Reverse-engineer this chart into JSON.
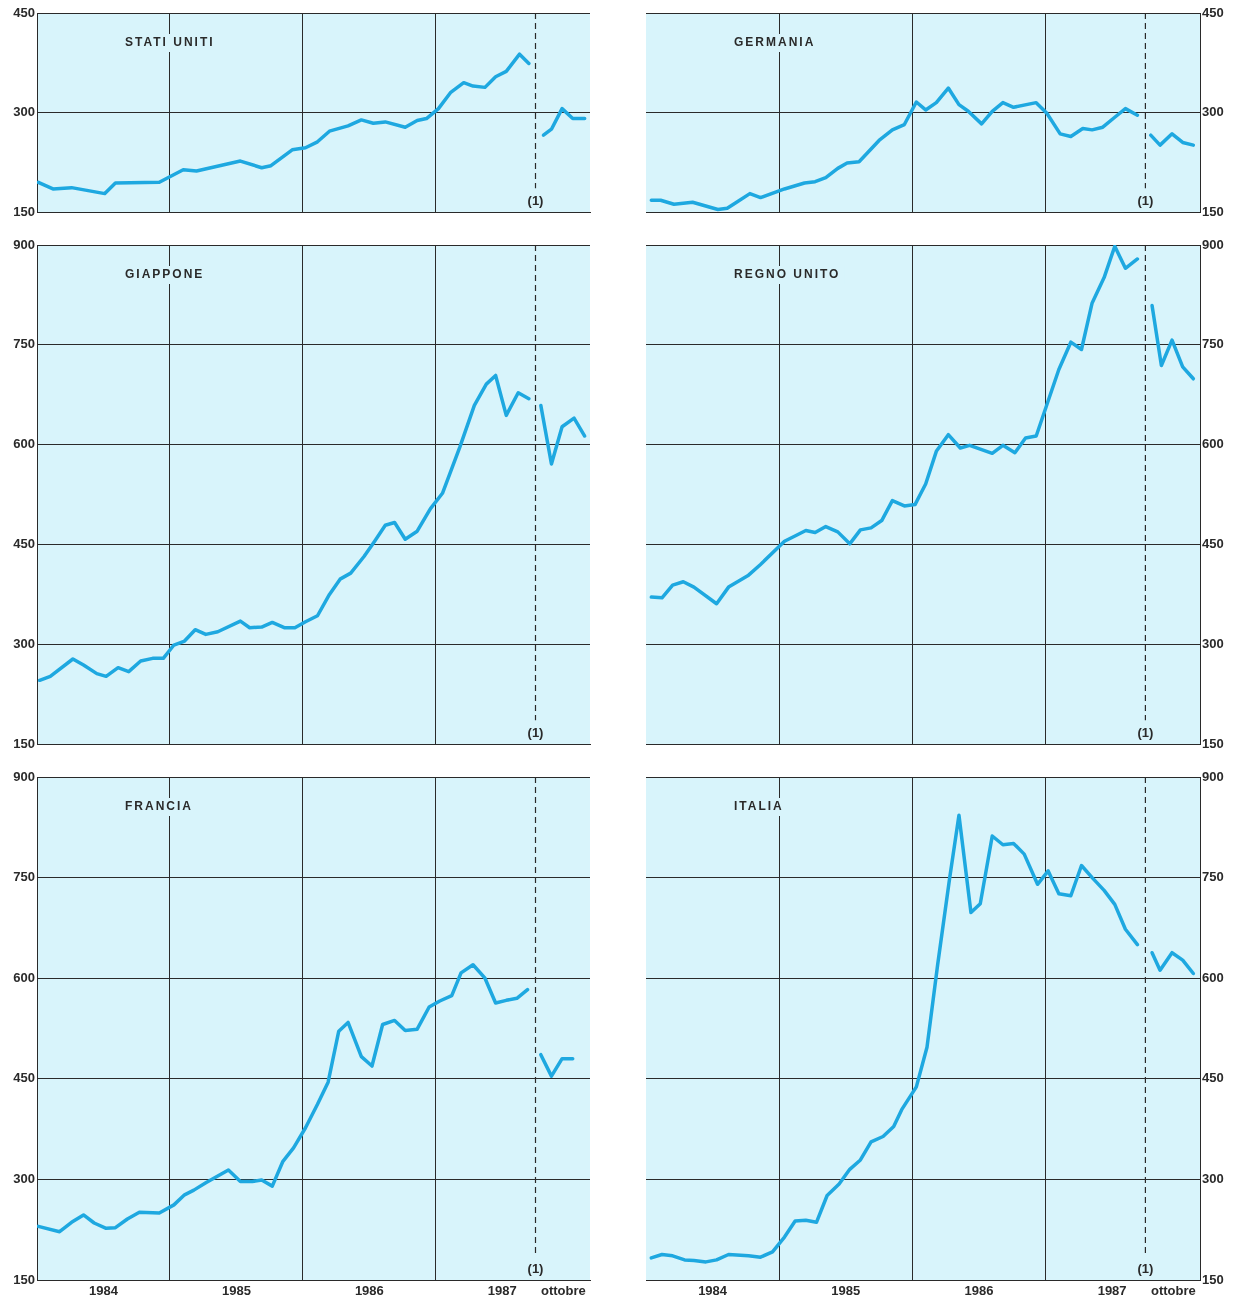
{
  "chart_data": [
    {
      "type": "line",
      "title": "STATI UNITI",
      "annotations": [
        "(1)"
      ],
      "xlim": [
        1984,
        1988.16
      ],
      "xticks": [
        {
          "value": 1985,
          "label": null
        },
        {
          "value": 1986,
          "label": null
        },
        {
          "value": 1987,
          "label": null
        }
      ],
      "ylim": [
        150,
        450
      ],
      "yticks": [
        150,
        300,
        450
      ],
      "grid": true,
      "tick_labels": "y",
      "ref_lines": [
        {
          "axis": "x",
          "value": 1987.75,
          "line_style": "dashed"
        }
      ],
      "series": [
        {
          "color": "#1ea8e0",
          "x": [
            1984.01,
            1984.12,
            1984.26,
            1984.51,
            1984.59,
            1984.92,
            1985.1,
            1985.2,
            1985.53,
            1985.69,
            1985.76,
            1985.92,
            1986.02,
            1986.11,
            1986.2,
            1986.34,
            1986.44,
            1986.53,
            1986.62,
            1986.77,
            1986.86,
            1986.93,
            1987.02,
            1987.11,
            1987.21,
            1987.28,
            1987.37,
            1987.45,
            1987.53,
            1987.63,
            1987.7
          ],
          "values": [
            195,
            185,
            187,
            178,
            194,
            195,
            214,
            212,
            227,
            217,
            220,
            244,
            247,
            256,
            272,
            280,
            289,
            284,
            286,
            278,
            288,
            291,
            306,
            330,
            345,
            340,
            338,
            354,
            362,
            388,
            374
          ]
        },
        {
          "color": "#1ea8e0",
          "x": [
            1987.81,
            1987.87,
            1987.95,
            1988.03,
            1988.12
          ],
          "values": [
            266,
            275,
            306,
            291,
            291
          ]
        }
      ]
    },
    {
      "type": "line",
      "title": "GERMANIA",
      "annotations": [
        "(1)"
      ],
      "xlim": [
        1984,
        1988.16
      ],
      "xticks": [
        {
          "value": 1985,
          "label": null
        },
        {
          "value": 1986,
          "label": null
        },
        {
          "value": 1987,
          "label": null
        }
      ],
      "ylim": [
        150,
        450
      ],
      "yticks": [
        150,
        300,
        450
      ],
      "grid": true,
      "tick_labels": "y",
      "ref_lines": [
        {
          "axis": "x",
          "value": 1987.75,
          "line_style": "dashed"
        }
      ],
      "series": [
        {
          "color": "#1ea8e0",
          "x": [
            1984.04,
            1984.11,
            1984.21,
            1984.35,
            1984.54,
            1984.61,
            1984.68,
            1984.78,
            1984.86,
            1985.04,
            1985.19,
            1985.27,
            1985.35,
            1985.44,
            1985.51,
            1985.6,
            1985.75,
            1985.85,
            1985.94,
            1986.03,
            1986.1,
            1986.18,
            1986.27,
            1986.35,
            1986.42,
            1986.52,
            1986.6,
            1986.68,
            1986.76,
            1986.93,
            1987.01,
            1987.11,
            1987.19,
            1987.28,
            1987.35,
            1987.43,
            1987.52,
            1987.6,
            1987.69
          ],
          "values": [
            168,
            168,
            162,
            165,
            154,
            156,
            165,
            178,
            172,
            185,
            194,
            196,
            202,
            216,
            224,
            226,
            258,
            274,
            282,
            316,
            304,
            315,
            337,
            312,
            302,
            283,
            302,
            315,
            308,
            315,
            299,
            268,
            264,
            276,
            274,
            278,
            293,
            306,
            296
          ]
        },
        {
          "color": "#1ea8e0",
          "x": [
            1987.79,
            1987.86,
            1987.95,
            1988.03,
            1988.11
          ],
          "values": [
            266,
            251,
            268,
            255,
            251
          ]
        }
      ]
    },
    {
      "type": "line",
      "title": "GIAPPONE",
      "annotations": [
        "(1)"
      ],
      "xlim": [
        1984,
        1988.16
      ],
      "xticks": [
        {
          "value": 1985,
          "label": null
        },
        {
          "value": 1986,
          "label": null
        },
        {
          "value": 1987,
          "label": null
        }
      ],
      "ylim": [
        150,
        900
      ],
      "yticks": [
        150,
        300,
        450,
        600,
        750,
        900
      ],
      "grid": true,
      "tick_labels": "y",
      "ref_lines": [
        {
          "axis": "x",
          "value": 1987.75,
          "line_style": "dashed"
        }
      ],
      "series": [
        {
          "color": "#1ea8e0",
          "x": [
            1984.02,
            1984.1,
            1984.27,
            1984.35,
            1984.45,
            1984.52,
            1984.61,
            1984.69,
            1984.78,
            1984.87,
            1984.95,
            1985.03,
            1985.11,
            1985.19,
            1985.27,
            1985.36,
            1985.53,
            1985.6,
            1985.69,
            1985.77,
            1985.86,
            1985.94,
            1986.02,
            1986.11,
            1986.2,
            1986.28,
            1986.36,
            1986.46,
            1986.54,
            1986.62,
            1986.69,
            1986.77,
            1986.86,
            1986.96,
            1987.05,
            1987.18,
            1987.29,
            1987.38,
            1987.45,
            1987.53,
            1987.62,
            1987.7
          ],
          "values": [
            246,
            252,
            278,
            269,
            256,
            252,
            265,
            259,
            275,
            279,
            279,
            299,
            305,
            322,
            315,
            319,
            335,
            325,
            326,
            333,
            325,
            325,
            334,
            343,
            375,
            398,
            407,
            432,
            455,
            479,
            483,
            458,
            470,
            504,
            527,
            596,
            659,
            691,
            704,
            644,
            678,
            669
          ]
        },
        {
          "color": "#1ea8e0",
          "x": [
            1987.79,
            1987.87,
            1987.95,
            1988.04,
            1988.12
          ],
          "values": [
            659,
            571,
            627,
            640,
            613
          ]
        }
      ]
    },
    {
      "type": "line",
      "title": "REGNO UNITO",
      "annotations": [
        "(1)"
      ],
      "xlim": [
        1984,
        1988.16
      ],
      "xticks": [
        {
          "value": 1985,
          "label": null
        },
        {
          "value": 1986,
          "label": null
        },
        {
          "value": 1987,
          "label": null
        }
      ],
      "ylim": [
        150,
        900
      ],
      "yticks": [
        150,
        300,
        450,
        600,
        750,
        900
      ],
      "grid": true,
      "tick_labels": "y",
      "ref_lines": [
        {
          "axis": "x",
          "value": 1987.75,
          "line_style": "dashed"
        }
      ],
      "series": [
        {
          "color": "#1ea8e0",
          "x": [
            1984.04,
            1984.12,
            1984.2,
            1984.28,
            1984.36,
            1984.53,
            1984.62,
            1984.77,
            1984.86,
            1985.04,
            1985.13,
            1985.2,
            1985.27,
            1985.35,
            1985.44,
            1985.53,
            1985.61,
            1985.69,
            1985.77,
            1985.85,
            1985.94,
            1986.02,
            1986.1,
            1986.18,
            1986.27,
            1986.36,
            1986.43,
            1986.6,
            1986.68,
            1986.77,
            1986.85,
            1986.93,
            1987.01,
            1987.1,
            1987.19,
            1987.27,
            1987.35,
            1987.44,
            1987.52,
            1987.6,
            1987.69
          ],
          "values": [
            371,
            370,
            389,
            394,
            386,
            361,
            386,
            404,
            420,
            455,
            464,
            471,
            468,
            477,
            469,
            451,
            472,
            475,
            486,
            516,
            508,
            510,
            541,
            590,
            615,
            595,
            599,
            587,
            599,
            588,
            610,
            613,
            660,
            713,
            754,
            743,
            813,
            851,
            898,
            865,
            879
          ]
        },
        {
          "color": "#1ea8e0",
          "x": [
            1987.8,
            1987.87,
            1987.95,
            1988.03,
            1988.11
          ],
          "values": [
            809,
            719,
            757,
            717,
            699
          ]
        }
      ]
    },
    {
      "type": "line",
      "title": "FRANCIA",
      "annotations": [
        "(1)"
      ],
      "xlim": [
        1984,
        1988.16
      ],
      "xticks": [
        {
          "value": 1984.5,
          "label": "1984"
        },
        {
          "value": 1985,
          "label": null
        },
        {
          "value": 1985.5,
          "label": "1985"
        },
        {
          "value": 1986,
          "label": null
        },
        {
          "value": 1986.5,
          "label": "1986"
        },
        {
          "value": 1987,
          "label": null
        },
        {
          "value": 1987.5,
          "label": "1987"
        },
        {
          "value": 1987.96,
          "label": "ottobre"
        }
      ],
      "ylim": [
        150,
        900
      ],
      "yticks": [
        150,
        300,
        450,
        600,
        750,
        900
      ],
      "grid": true,
      "ref_lines": [
        {
          "axis": "x",
          "value": 1987.75,
          "line_style": "dashed"
        }
      ],
      "series": [
        {
          "color": "#1ea8e0",
          "x": [
            1984.01,
            1984.17,
            1984.26,
            1984.35,
            1984.43,
            1984.52,
            1984.59,
            1984.68,
            1984.77,
            1984.92,
            1985.03,
            1985.11,
            1985.18,
            1985.27,
            1985.36,
            1985.44,
            1985.53,
            1985.62,
            1985.69,
            1985.77,
            1985.85,
            1985.93,
            1986.02,
            1986.11,
            1986.19,
            1986.27,
            1986.34,
            1986.44,
            1986.52,
            1986.6,
            1986.69,
            1986.77,
            1986.86,
            1986.95,
            1987.03,
            1987.12,
            1987.19,
            1987.28,
            1987.37,
            1987.45,
            1987.53,
            1987.61,
            1987.69
          ],
          "values": [
            230,
            222,
            236,
            247,
            235,
            227,
            228,
            241,
            251,
            250,
            262,
            277,
            284,
            295,
            305,
            314,
            297,
            297,
            299,
            290,
            327,
            347,
            377,
            412,
            445,
            521,
            534,
            483,
            469,
            531,
            537,
            522,
            524,
            557,
            566,
            574,
            608,
            620,
            600,
            563,
            567,
            570,
            583
          ]
        },
        {
          "color": "#1ea8e0",
          "x": [
            1987.79,
            1987.87,
            1987.95,
            1988.03
          ],
          "values": [
            486,
            454,
            480,
            480
          ]
        }
      ]
    },
    {
      "type": "line",
      "title": "ITALIA",
      "annotations": [
        "(1)"
      ],
      "xlim": [
        1984,
        1988.16
      ],
      "xticks": [
        {
          "value": 1984.5,
          "label": "1984"
        },
        {
          "value": 1985,
          "label": null
        },
        {
          "value": 1985.5,
          "label": "1985"
        },
        {
          "value": 1986,
          "label": null
        },
        {
          "value": 1986.5,
          "label": "1986"
        },
        {
          "value": 1987,
          "label": null
        },
        {
          "value": 1987.5,
          "label": "1987"
        },
        {
          "value": 1987.96,
          "label": "ottobre"
        }
      ],
      "ylim": [
        150,
        900
      ],
      "yticks": [
        150,
        300,
        450,
        600,
        750,
        900
      ],
      "grid": true,
      "ref_lines": [
        {
          "axis": "x",
          "value": 1987.75,
          "line_style": "dashed"
        }
      ],
      "series": [
        {
          "color": "#1ea8e0",
          "x": [
            1984.04,
            1984.12,
            1984.2,
            1984.29,
            1984.36,
            1984.45,
            1984.53,
            1984.62,
            1984.77,
            1984.86,
            1984.95,
            1985.04,
            1985.12,
            1985.2,
            1985.28,
            1985.36,
            1985.45,
            1985.53,
            1985.61,
            1985.69,
            1985.78,
            1985.86,
            1985.92,
            1986.03,
            1986.11,
            1986.19,
            1986.28,
            1986.35,
            1986.44,
            1986.51,
            1986.6,
            1986.68,
            1986.76,
            1986.84,
            1986.94,
            1987.02,
            1987.1,
            1987.19,
            1987.27,
            1987.35,
            1987.44,
            1987.52,
            1987.6,
            1987.69
          ],
          "values": [
            183,
            188,
            186,
            180,
            179,
            177,
            180,
            188,
            186,
            184,
            192,
            214,
            238,
            239,
            236,
            276,
            293,
            315,
            329,
            356,
            364,
            379,
            404,
            438,
            497,
            620,
            749,
            843,
            698,
            711,
            812,
            799,
            801,
            785,
            740,
            760,
            726,
            723,
            768,
            750,
            731,
            710,
            673,
            650
          ]
        },
        {
          "color": "#1ea8e0",
          "x": [
            1987.8,
            1987.86,
            1987.95,
            1988.03,
            1988.11
          ],
          "values": [
            638,
            612,
            638,
            627,
            607
          ]
        }
      ]
    }
  ]
}
